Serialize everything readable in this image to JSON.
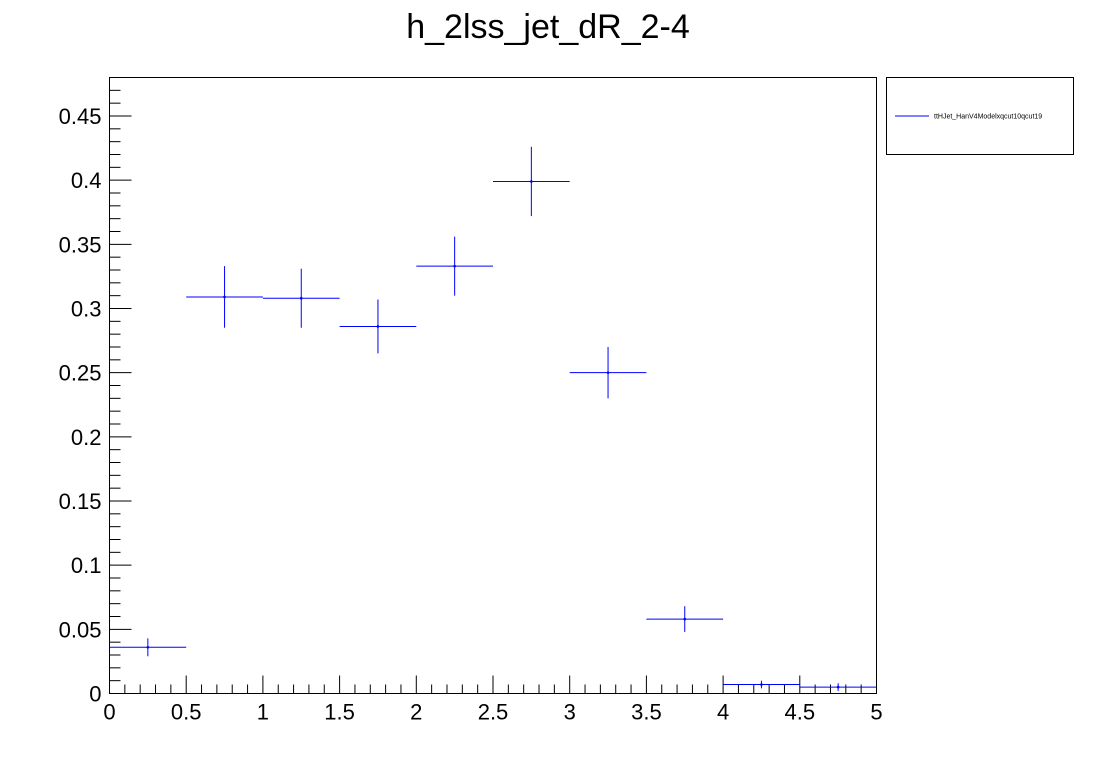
{
  "chart_data": {
    "type": "histogram-errorbars",
    "title": "h_2lss_jet_dR_2-4",
    "xlim": [
      0,
      5
    ],
    "ylim": [
      0,
      0.48
    ],
    "x_ticks": [
      "0",
      "0.5",
      "1",
      "1.5",
      "2",
      "2.5",
      "3",
      "3.5",
      "4",
      "4.5",
      "5"
    ],
    "y_ticks": [
      "0",
      "0.05",
      "0.1",
      "0.15",
      "0.2",
      "0.25",
      "0.3",
      "0.35",
      "0.4",
      "0.45"
    ],
    "grid": false,
    "legend_position": "top-right-outside",
    "series": [
      {
        "name": "ttHJet_HanV4Modelxqcut10qcut19",
        "color": "#0000ff",
        "bin_edges": [
          0,
          0.5,
          1,
          1.5,
          2,
          2.5,
          3,
          3.5,
          4,
          4.5,
          5
        ],
        "x": [
          0.25,
          0.75,
          1.25,
          1.75,
          2.25,
          2.75,
          3.25,
          3.75,
          4.25,
          4.75
        ],
        "values": [
          0.036,
          0.309,
          0.308,
          0.286,
          0.333,
          0.399,
          0.25,
          0.058,
          0.007,
          0.005
        ],
        "errors": [
          0.007,
          0.024,
          0.023,
          0.021,
          0.023,
          0.027,
          0.02,
          0.01,
          0.003,
          0.003
        ]
      }
    ]
  }
}
